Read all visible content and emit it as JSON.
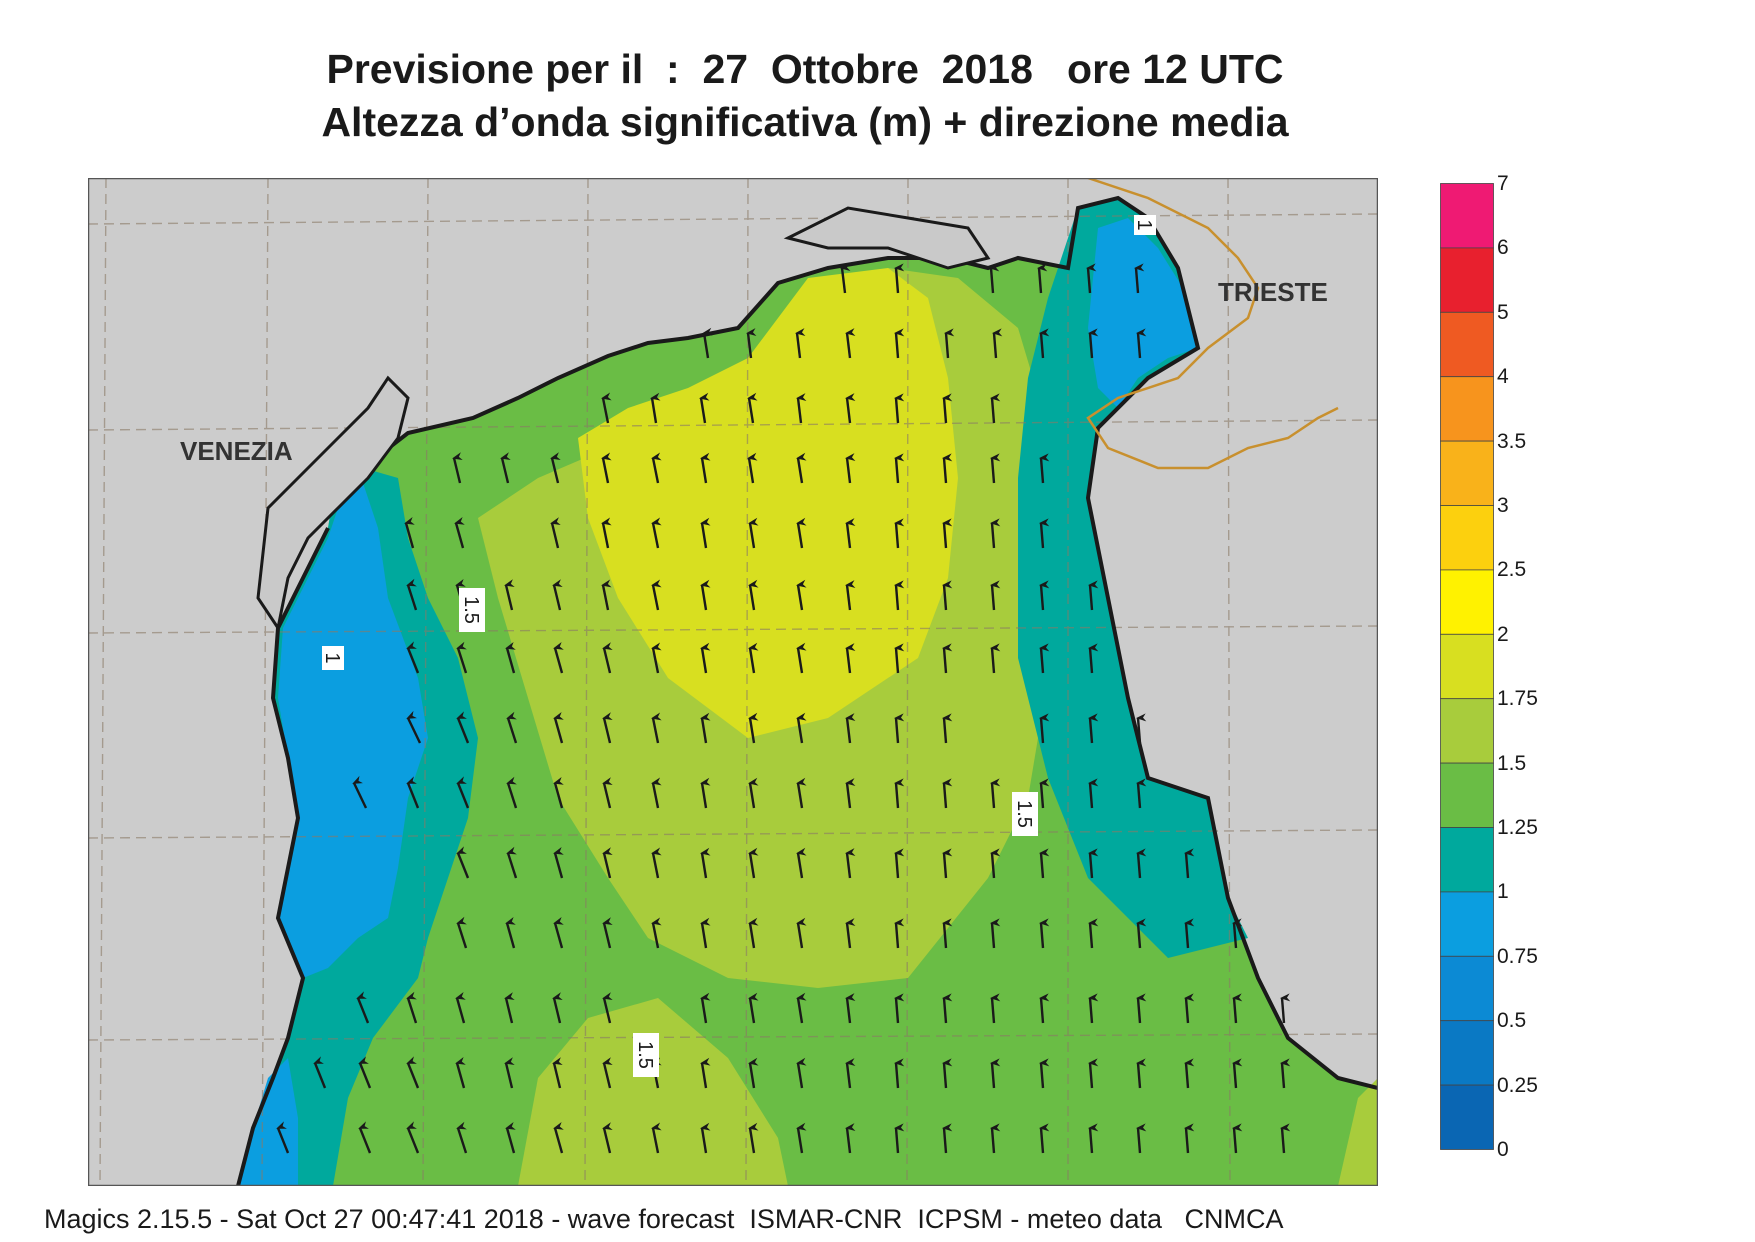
{
  "title": {
    "line1": "Previsione per il  :  27  Ottobre  2018   ore 12 UTC",
    "line2": "Altezza d’onda significativa (m) + direzione media"
  },
  "map": {
    "cities": [
      {
        "name": "VENEZIA"
      },
      {
        "name": "TRIESTE"
      }
    ],
    "contour_labels": [
      "1.5",
      "1",
      "1.5",
      "1.5",
      "1"
    ],
    "arrow_direction": "north, slightly north-west",
    "land_color": "#cccccc",
    "border_color": "#c8902e"
  },
  "legend": {
    "levels": [
      "7",
      "6",
      "5",
      "4",
      "3.5",
      "3",
      "2.5",
      "2",
      "1.75",
      "1.5",
      "1.25",
      "1",
      "0.75",
      "0.5",
      "0.25",
      "0"
    ],
    "colors": [
      "#ef1a73",
      "#e8202e",
      "#ef5a22",
      "#f7941d",
      "#f9b21a",
      "#fcd00e",
      "#fff200",
      "#d8df20",
      "#a8cc3c",
      "#6abd45",
      "#00a99d",
      "#0b9ee0",
      "#0c8ad4",
      "#0a79c4",
      "#0a66b3"
    ]
  },
  "footer": "Magics 2.15.5 - Sat Oct 27 00:47:41 2018 - wave forecast  ISMAR-CNR  ICPSM - meteo data   CNMCA"
}
